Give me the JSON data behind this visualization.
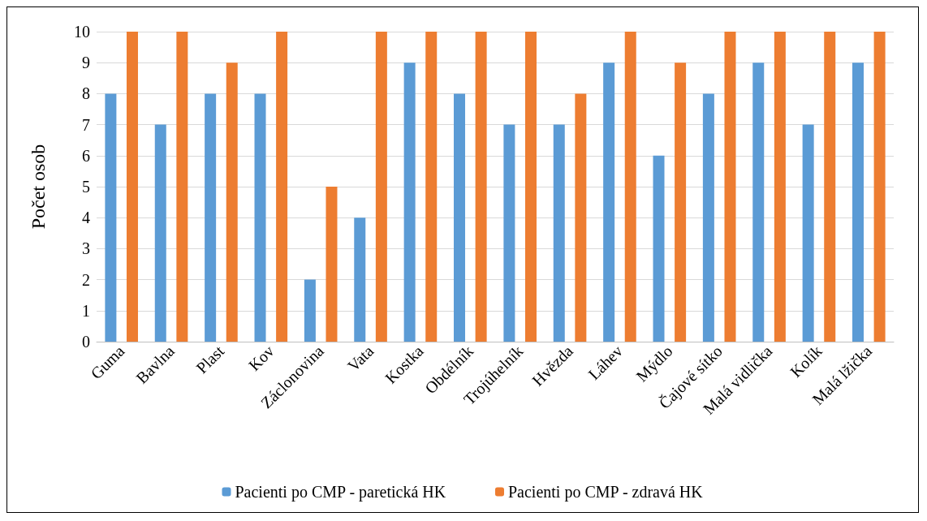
{
  "chart_data": {
    "type": "bar",
    "ylabel": "Počet osob",
    "categories": [
      "Guma",
      "Bavlna",
      "Plast",
      "Kov",
      "Záclonovina",
      "Vata",
      "Kostka",
      "Obdélník",
      "Trojúhelník",
      "Hvězda",
      "Láhev",
      "Mýdlo",
      "Čajové sítko",
      "Malá vidlička",
      "Kolík",
      "Malá lžička"
    ],
    "series": [
      {
        "name": "Pacienti po CMP - paretická HK",
        "color": "#5b9bd5",
        "values": [
          8,
          7,
          8,
          8,
          2,
          4,
          9,
          8,
          7,
          7,
          9,
          6,
          8,
          9,
          7,
          9
        ]
      },
      {
        "name": "Pacienti po CMP - zdravá HK",
        "color": "#ed7d31",
        "values": [
          10,
          10,
          9,
          10,
          5,
          10,
          10,
          10,
          10,
          8,
          10,
          9,
          10,
          10,
          10,
          10
        ]
      }
    ],
    "ylim": [
      0,
      10
    ],
    "yticks": [
      0,
      1,
      2,
      3,
      4,
      5,
      6,
      7,
      8,
      9,
      10
    ],
    "grid": "y",
    "legend": "bottom"
  }
}
